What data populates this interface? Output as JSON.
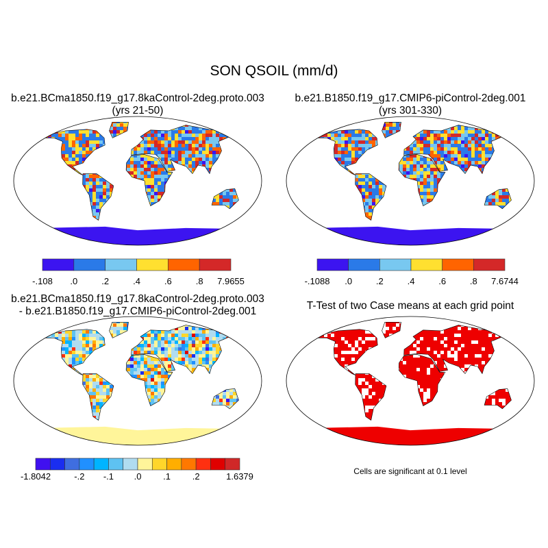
{
  "title": "SON QSOIL (mm/d)",
  "panels": [
    {
      "id": "case1",
      "title_line1": "b.e21.BCma1850.f19_g17.8kaControl-2deg.proto.003",
      "title_line2": "(yrs 21-50)",
      "colorbar": {
        "labels": [
          "-.108",
          ".0",
          ".2",
          ".4",
          ".6",
          ".8",
          "7.9655"
        ],
        "colors": [
          "#3c14f0",
          "#2a7ae8",
          "#78c8f0",
          "#ffe030",
          "#ff6400",
          "#d42828"
        ]
      }
    },
    {
      "id": "case2",
      "title_line1": "b.e21.B1850.f19_g17.CMIP6-piControl-2deg.001",
      "title_line2": "(yrs 301-330)",
      "colorbar": {
        "labels": [
          "-.1088",
          ".0",
          ".2",
          ".4",
          ".6",
          ".8",
          "7.6744"
        ],
        "colors": [
          "#3c14f0",
          "#2a7ae8",
          "#78c8f0",
          "#ffe030",
          "#ff6400",
          "#d42828"
        ]
      }
    },
    {
      "id": "diff",
      "title_line1": "b.e21.BCma1850.f19_g17.8kaControl-2deg.proto.003",
      "title_line2": "- b.e21.B1850.f19_g17.CMIP6-piControl-2deg.001",
      "colorbar": {
        "labels": [
          "-1.8042",
          "-.2",
          "-.1",
          ".0",
          ".1",
          ".2",
          "1.6379"
        ],
        "colors": [
          "#4010f0",
          "#1a2ef0",
          "#3f6ee0",
          "#2090ff",
          "#00b4ff",
          "#5ec2f2",
          "#b0dcf0",
          "#fff59a",
          "#ffd62a",
          "#ffae00",
          "#ff7800",
          "#ff3010",
          "#e00000",
          "#d02828"
        ]
      }
    },
    {
      "id": "ttest",
      "title_line1": "T-Test of two Case means at each grid point",
      "note": "Cells are significant at 0.1 level",
      "significant_color": "#ee0000"
    }
  ]
}
